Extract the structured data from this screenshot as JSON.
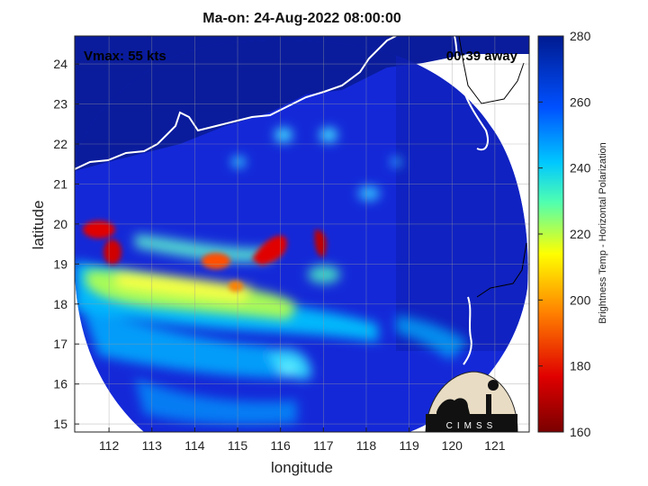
{
  "figure": {
    "title": "Ma-on: 24-Aug-2022 08:00:00",
    "vmax_label": "Vmax: 55 kts",
    "time_away_label": "00:39 away",
    "x_axis_label": "longitude",
    "y_axis_label": "latitude",
    "colorbar_label": "Brightness Temp - Horizontal Polarization",
    "logo_text": "CIMSS"
  },
  "map": {
    "lon_range": [
      111.2,
      121.8
    ],
    "lat_range": [
      14.8,
      24.7
    ],
    "lon_ticks": [
      112,
      113,
      114,
      115,
      116,
      117,
      118,
      119,
      120,
      121
    ],
    "lat_ticks": [
      15,
      16,
      17,
      18,
      19,
      20,
      21,
      22,
      23,
      24
    ],
    "grid": true,
    "swath_background_color": "#1428d8",
    "outside_swath_color": "#ffffff",
    "coastline_color": "#ffffff"
  },
  "colorbar": {
    "range": [
      160,
      280
    ],
    "ticks": [
      160,
      180,
      200,
      220,
      240,
      260,
      280
    ],
    "colors": [
      "#7a0000",
      "#e00000",
      "#ff8000",
      "#ffff00",
      "#50ffb0",
      "#00c8ff",
      "#0050ff",
      "#001a90"
    ]
  }
}
